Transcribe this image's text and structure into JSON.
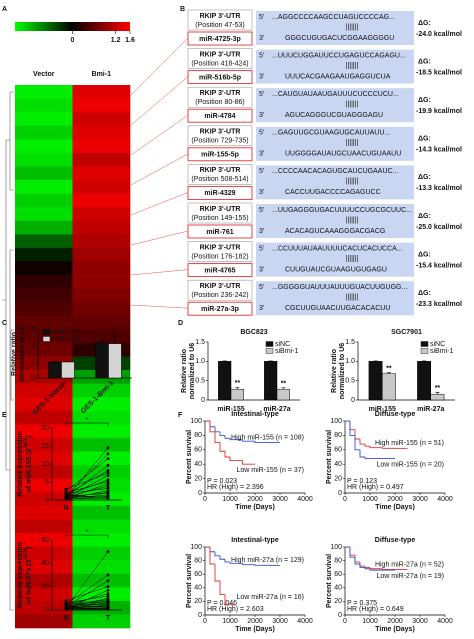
{
  "panels": [
    "A",
    "B",
    "C",
    "D",
    "E",
    "F"
  ],
  "alignments": {
    "five": "5'",
    "three": "3'",
    "dg_label": "ΔG:",
    "rows": [
      {
        "utr": "RKIP 3'-UTR",
        "position": "(Position 47-53)",
        "mirna": "miR-4725-3p",
        "target": "...AGGCCCCAAGCCUAGUCCCCAG...",
        "pairing": "|||||||",
        "seed": "GGGCUGUGACUCGGAAGGGGU",
        "dg": "-24.0 kcal/mol"
      },
      {
        "utr": "RKIP 3'-UTR",
        "position": "(Position 418-424)",
        "mirna": "miR-516b-5p",
        "target": "...UUUCUGGAUUCCUGAGUCCAGAGU...",
        "pairing": "|||||||",
        "seed": "UUUCACGAAGAAUGAGGUCUA",
        "dg": "-18.5 kcal/mol"
      },
      {
        "utr": "RKIP 3'-UTR",
        "position": "(Position 80-86)",
        "mirna": "miR-4784",
        "target": "...CAUGUAUAAUGAUUUCUCCCUCU...",
        "pairing": "|||||||",
        "seed": "AGUCAGGGUCGUAGGGAGU",
        "dg": "-19.9 kcal/mol"
      },
      {
        "utr": "RKIP 3'-UTR",
        "position": "(Position 729-735)",
        "mirna": "miR-155-5p",
        "target": "...GAGUUGCGUAAGUGCAUUAUU...",
        "pairing": "|||||||",
        "seed": "UUGGGGAUAUGCUAACUGUAAUU",
        "dg": "-14.3 kcal/mol"
      },
      {
        "utr": "RKIP 3'-UTR",
        "position": "(Position 508-514)",
        "mirna": "miR-4329",
        "target": "...CCCCAACACAGUGCAUCUGAAUC...",
        "pairing": "|||||||",
        "seed": "CACCUUGACCCCAGAGUCC",
        "dg": "-13.3 kcal/mol"
      },
      {
        "utr": "RKIP 3'-UTR",
        "position": "(Position 149-155)",
        "mirna": "miR-761",
        "target": "...UUGAGGGUGACUUUUCCUGCGCUUC...",
        "pairing": "|||||||",
        "seed": "ACACAGUCAAAGGGACGACG",
        "dg": "-25.0 kcal/mol"
      },
      {
        "utr": "RKIP 3'-UTR",
        "position": "(Position 176-182)",
        "mirna": "miR-4765",
        "target": "...CCUUUAUAAUUUUCACUCACUCCA...",
        "pairing": "|||||||",
        "seed": "CUUGUAUCGUAAGUGUGAGU",
        "dg": "-15.4 kcal/mol"
      },
      {
        "utr": "RKIP 3'-UTR",
        "position": "(Position 236-242)",
        "mirna": "miR-27a-3p",
        "target": "...GGGGGUAUUUAUUUGUACUUGUGG...",
        "pairing": "|||||||",
        "seed": "CGCUUGUAACUUGACACACUU",
        "dg": "-23.3 kcal/mol"
      }
    ]
  },
  "chart_data": [
    {
      "type": "heatmap",
      "columns": [
        "Vector",
        "Bmi-1"
      ],
      "clim": [
        -1.6,
        1.6
      ],
      "cticks": [
        0,
        1.2,
        1.6
      ],
      "colors": [
        "#00ff00",
        "#000000",
        "#ff0000"
      ],
      "values": [
        [
          -1.5,
          1.4
        ],
        [
          -1.4,
          1.5
        ],
        [
          -1.5,
          1.3
        ],
        [
          -1.3,
          1.4
        ],
        [
          -1.5,
          1.5
        ],
        [
          -1.4,
          1.2
        ],
        [
          -1.2,
          1.4
        ],
        [
          -1.5,
          1.3
        ],
        [
          -1.3,
          1.5
        ],
        [
          -1.4,
          1.3
        ],
        [
          -1.1,
          1.2
        ],
        [
          -0.6,
          1.1
        ],
        [
          -0.2,
          1.0
        ],
        [
          0.1,
          0.9
        ],
        [
          0.3,
          0.9
        ],
        [
          0.4,
          0.8
        ],
        [
          0.5,
          0.7
        ],
        [
          0.6,
          0.6
        ],
        [
          0.6,
          0.5
        ],
        [
          0.7,
          0.3
        ],
        [
          0.9,
          -0.4
        ],
        [
          1.1,
          -1.0
        ],
        [
          1.3,
          -1.3
        ],
        [
          1.4,
          -1.5
        ],
        [
          1.2,
          -1.4
        ],
        [
          1.5,
          -1.5
        ],
        [
          1.3,
          -1.2
        ],
        [
          1.4,
          -1.5
        ],
        [
          1.2,
          -1.3
        ],
        [
          1.5,
          -1.4
        ],
        [
          1.3,
          -1.5
        ],
        [
          1.4,
          -1.2
        ],
        [
          1.2,
          -1.4
        ],
        [
          1.5,
          -1.5
        ],
        [
          1.3,
          -1.3
        ],
        [
          1.4,
          -1.4
        ],
        [
          1.1,
          -1.2
        ],
        [
          1.3,
          -1.5
        ],
        [
          1.2,
          -1.1
        ],
        [
          1.0,
          -1.3
        ]
      ]
    },
    {
      "type": "bar",
      "categories": [
        "GES-1-Vector",
        "GES-1-Bmi-1"
      ],
      "xlabel_rotation": 45,
      "ylabel": [
        "Relative ratio",
        "normalized to U6"
      ],
      "ylim": [
        0,
        3
      ],
      "yticks": [
        0,
        1,
        2,
        3
      ],
      "legend": "upper left",
      "series": [
        {
          "name": "miR-27a",
          "color": "#111111",
          "values": [
            1.0,
            2.2
          ],
          "errors": [
            0.03,
            0.15
          ],
          "sig": [
            null,
            "*"
          ]
        },
        {
          "name": "miR-155",
          "color": "#d4d4d4",
          "values": [
            1.0,
            2.15
          ],
          "errors": [
            0.03,
            0.55
          ],
          "sig": [
            null,
            "*"
          ]
        }
      ]
    },
    {
      "type": "bar",
      "title": "BGC823",
      "categories": [
        "miR-155",
        "miR-27a"
      ],
      "ylabel": [
        "Relative ratio",
        "normalized to U6"
      ],
      "ylim": [
        0,
        1.5
      ],
      "yticks": [
        0,
        0.5,
        {
          "value": 1.0,
          "label": "1.0"
        },
        1.5
      ],
      "legend": "upper right",
      "series": [
        {
          "name": "siNC",
          "color": "#111111",
          "values": [
            1.0,
            1.0
          ],
          "errors": [
            0.01,
            0.01
          ]
        },
        {
          "name": "siBmi-1",
          "color": "#c8c8c8",
          "values": [
            0.28,
            0.28
          ],
          "errors": [
            0.05,
            0.04
          ],
          "sig": [
            "**",
            "**"
          ]
        }
      ]
    },
    {
      "type": "bar",
      "title": "SGC7901",
      "categories": [
        "miR-155",
        "miR-27a"
      ],
      "ylabel": [
        "Relative ratio",
        "normalized to U6"
      ],
      "ylim": [
        0,
        1.5
      ],
      "yticks": [
        0,
        0.5,
        {
          "value": 1.0,
          "label": "1.0"
        },
        1.5
      ],
      "legend": "upper right",
      "series": [
        {
          "name": "siNC",
          "color": "#111111",
          "values": [
            1.0,
            1.0
          ],
          "errors": [
            0.01,
            0.01
          ]
        },
        {
          "name": "siBmi-1",
          "color": "#c8c8c8",
          "values": [
            0.68,
            0.15
          ],
          "errors": [
            0.03,
            0.05
          ],
          "sig": [
            "**",
            "**"
          ]
        }
      ]
    },
    {
      "type": "paired",
      "categories": [
        "N",
        "T"
      ],
      "ylabel": [
        "Relative expression",
        "of miR-155 (2"
      ],
      "ylabel_sup": "-ΔCt",
      "ylabel_end": ")",
      "ylim": [
        0,
        20
      ],
      "yticks": [
        0,
        5,
        10,
        15,
        20
      ],
      "significance": "*",
      "pairs": [
        [
          0.5,
          14.5
        ],
        [
          1.0,
          12.8
        ],
        [
          2.5,
          11.5
        ],
        [
          0.8,
          9.6
        ],
        [
          1.5,
          8.2
        ],
        [
          3.0,
          7.5
        ],
        [
          0.6,
          6.8
        ],
        [
          1.2,
          5.6
        ],
        [
          2.0,
          5.1
        ],
        [
          0.4,
          4.5
        ],
        [
          0.9,
          3.8
        ],
        [
          1.8,
          3.2
        ],
        [
          0.3,
          2.6
        ],
        [
          0.7,
          2.1
        ],
        [
          1.1,
          1.8
        ],
        [
          0.5,
          1.4
        ],
        [
          0.2,
          1.0
        ],
        [
          0.8,
          0.9
        ],
        [
          1.4,
          0.6
        ],
        [
          0.3,
          0.5
        ]
      ]
    },
    {
      "type": "paired",
      "categories": [
        "N",
        "T"
      ],
      "ylabel": [
        "Relative expression",
        "of miR-27a (2"
      ],
      "ylabel_sup": "-ΔCt",
      "ylabel_end": ")",
      "ylim": [
        0,
        60
      ],
      "yticks": [
        0,
        20,
        40,
        60
      ],
      "significance": "*",
      "pairs": [
        [
          2,
          50
        ],
        [
          5,
          30
        ],
        [
          3,
          25
        ],
        [
          8,
          20
        ],
        [
          1,
          17
        ],
        [
          4,
          14
        ],
        [
          6,
          12
        ],
        [
          2,
          10
        ],
        [
          3,
          9
        ],
        [
          1,
          8
        ],
        [
          5,
          7
        ],
        [
          2,
          6
        ],
        [
          4,
          5
        ],
        [
          1,
          4
        ],
        [
          3,
          3.5
        ],
        [
          2,
          3
        ],
        [
          1,
          2
        ],
        [
          0.5,
          1.5
        ],
        [
          2,
          1
        ],
        [
          1,
          0.5
        ]
      ]
    },
    {
      "type": "survival",
      "title": "Intestinal-type",
      "xlabel": "Time (Days)",
      "ylabel": "Percent survival",
      "xlim": [
        0,
        4000
      ],
      "xticks": [
        0,
        1000,
        2000,
        3000,
        4000
      ],
      "ylim": [
        0,
        100
      ],
      "yticks": [
        0,
        20,
        40,
        60,
        80,
        100
      ],
      "notes": [
        "P = 0.023",
        "HR (High) = 2.396"
      ],
      "series": [
        {
          "name": "High miR-155 (n = 108)",
          "color": "#3050d0",
          "x": [
            0,
            200,
            400,
            600,
            800,
            1000,
            1500,
            2000,
            2500,
            3000
          ],
          "y": [
            100,
            92,
            85,
            80,
            76,
            74,
            72,
            70,
            70,
            70
          ]
        },
        {
          "name": "Low miR-155 (n = 37)",
          "color": "#e03030",
          "x": [
            0,
            200,
            400,
            600,
            800,
            1000,
            1500,
            2000
          ],
          "y": [
            100,
            85,
            70,
            58,
            50,
            45,
            40,
            40
          ]
        }
      ]
    },
    {
      "type": "survival",
      "title": "Diffuse-type",
      "xlabel": "Time (Days)",
      "ylabel": "Percent survival",
      "xlim": [
        0,
        4000
      ],
      "xticks": [
        0,
        1000,
        2000,
        3000,
        4000
      ],
      "ylim": [
        0,
        100
      ],
      "yticks": [
        0,
        20,
        40,
        60,
        80,
        100
      ],
      "notes": [
        "P = 0.123",
        "HR (High) = 0.497"
      ],
      "series": [
        {
          "name": "High miR-155 (n = 51)",
          "color": "#e03030",
          "x": [
            0,
            200,
            400,
            600,
            800,
            1000,
            1500,
            2000,
            2500
          ],
          "y": [
            100,
            88,
            75,
            68,
            65,
            63,
            62,
            62,
            62
          ]
        },
        {
          "name": "Low miR-155 (n = 20)",
          "color": "#3050d0",
          "x": [
            0,
            200,
            400,
            600,
            800,
            1000,
            1500,
            2000
          ],
          "y": [
            100,
            80,
            60,
            50,
            48,
            48,
            48,
            48
          ]
        }
      ]
    },
    {
      "type": "survival",
      "title": "Intestinal-type",
      "xlabel": "Time (Days)",
      "ylabel": "Percent survival",
      "xlim": [
        0,
        4000
      ],
      "xticks": [
        0,
        1000,
        2000,
        3000,
        4000
      ],
      "ylim": [
        0,
        100
      ],
      "yticks": [
        0,
        20,
        40,
        60,
        80,
        100
      ],
      "notes": [
        "P = 0.046",
        "HR (High) = 2.603"
      ],
      "series": [
        {
          "name": "High miR-27a (n = 129)",
          "color": "#3050d0",
          "x": [
            0,
            200,
            400,
            600,
            800,
            1000,
            1500,
            2000,
            2500,
            3000
          ],
          "y": [
            100,
            93,
            87,
            82,
            78,
            76,
            74,
            73,
            73,
            73
          ]
        },
        {
          "name": "Low miR-27a (n = 16)",
          "color": "#e03030",
          "x": [
            0,
            200,
            400,
            600,
            800,
            1000,
            1200
          ],
          "y": [
            100,
            75,
            50,
            30,
            15,
            15,
            15
          ]
        }
      ]
    },
    {
      "type": "survival",
      "title": "Diffuse-type",
      "xlabel": "Time (Days)",
      "ylabel": "Percent survival",
      "xlim": [
        0,
        4000
      ],
      "xticks": [
        0,
        1000,
        2000,
        3000,
        4000
      ],
      "ylim": [
        0,
        100
      ],
      "yticks": [
        0,
        20,
        40,
        60,
        80,
        100
      ],
      "notes": [
        "P = 0.375",
        "HR (High) = 0.649"
      ],
      "series": [
        {
          "name": "High miR-27a (n = 52)",
          "color": "#e03030",
          "x": [
            0,
            200,
            400,
            600,
            800,
            1000,
            1500,
            2000,
            2500
          ],
          "y": [
            100,
            88,
            78,
            72,
            70,
            68,
            67,
            67,
            67
          ]
        },
        {
          "name": "Low miR-27a (n = 19)",
          "color": "#3050d0",
          "x": [
            0,
            200,
            400,
            600,
            800,
            1000,
            1500,
            2000
          ],
          "y": [
            100,
            85,
            75,
            70,
            68,
            66,
            66,
            66
          ]
        }
      ]
    }
  ]
}
